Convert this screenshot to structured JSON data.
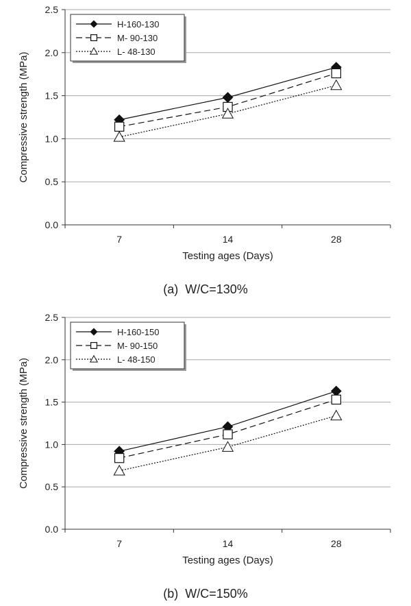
{
  "chart_data": [
    {
      "type": "line",
      "caption": "(a)  W/C=130%",
      "xlabel": "Testing ages (Days)",
      "ylabel": "Compressive strength (MPa)",
      "categories": [
        "7",
        "14",
        "28"
      ],
      "ylim": [
        0,
        2.5
      ],
      "yticks": [
        "0.0",
        "0.5",
        "1.0",
        "1.5",
        "2.0",
        "2.5"
      ],
      "grid": "horizontal",
      "legend": "top-left",
      "series": [
        {
          "name": "H-160-130",
          "values": [
            1.22,
            1.48,
            1.83
          ],
          "marker": "filled-diamond",
          "dash": "solid"
        },
        {
          "name": "M- 90-130",
          "values": [
            1.14,
            1.37,
            1.76
          ],
          "marker": "open-square",
          "dash": "dashed"
        },
        {
          "name": "L- 48-130",
          "values": [
            1.02,
            1.29,
            1.62
          ],
          "marker": "open-triangle",
          "dash": "dotted"
        }
      ]
    },
    {
      "type": "line",
      "caption": "(b)  W/C=150%",
      "xlabel": "Testing ages (Days)",
      "ylabel": "Compressive strength (MPa)",
      "categories": [
        "7",
        "14",
        "28"
      ],
      "ylim": [
        0,
        2.5
      ],
      "yticks": [
        "0.0",
        "0.5",
        "1.0",
        "1.5",
        "2.0",
        "2.5"
      ],
      "grid": "horizontal",
      "legend": "top-left",
      "series": [
        {
          "name": "H-160-150",
          "values": [
            0.92,
            1.21,
            1.63
          ],
          "marker": "filled-diamond",
          "dash": "solid"
        },
        {
          "name": "M- 90-150",
          "values": [
            0.84,
            1.12,
            1.53
          ],
          "marker": "open-square",
          "dash": "dashed"
        },
        {
          "name": "L- 48-150",
          "values": [
            0.69,
            0.97,
            1.34
          ],
          "marker": "open-triangle",
          "dash": "dotted"
        }
      ]
    }
  ]
}
